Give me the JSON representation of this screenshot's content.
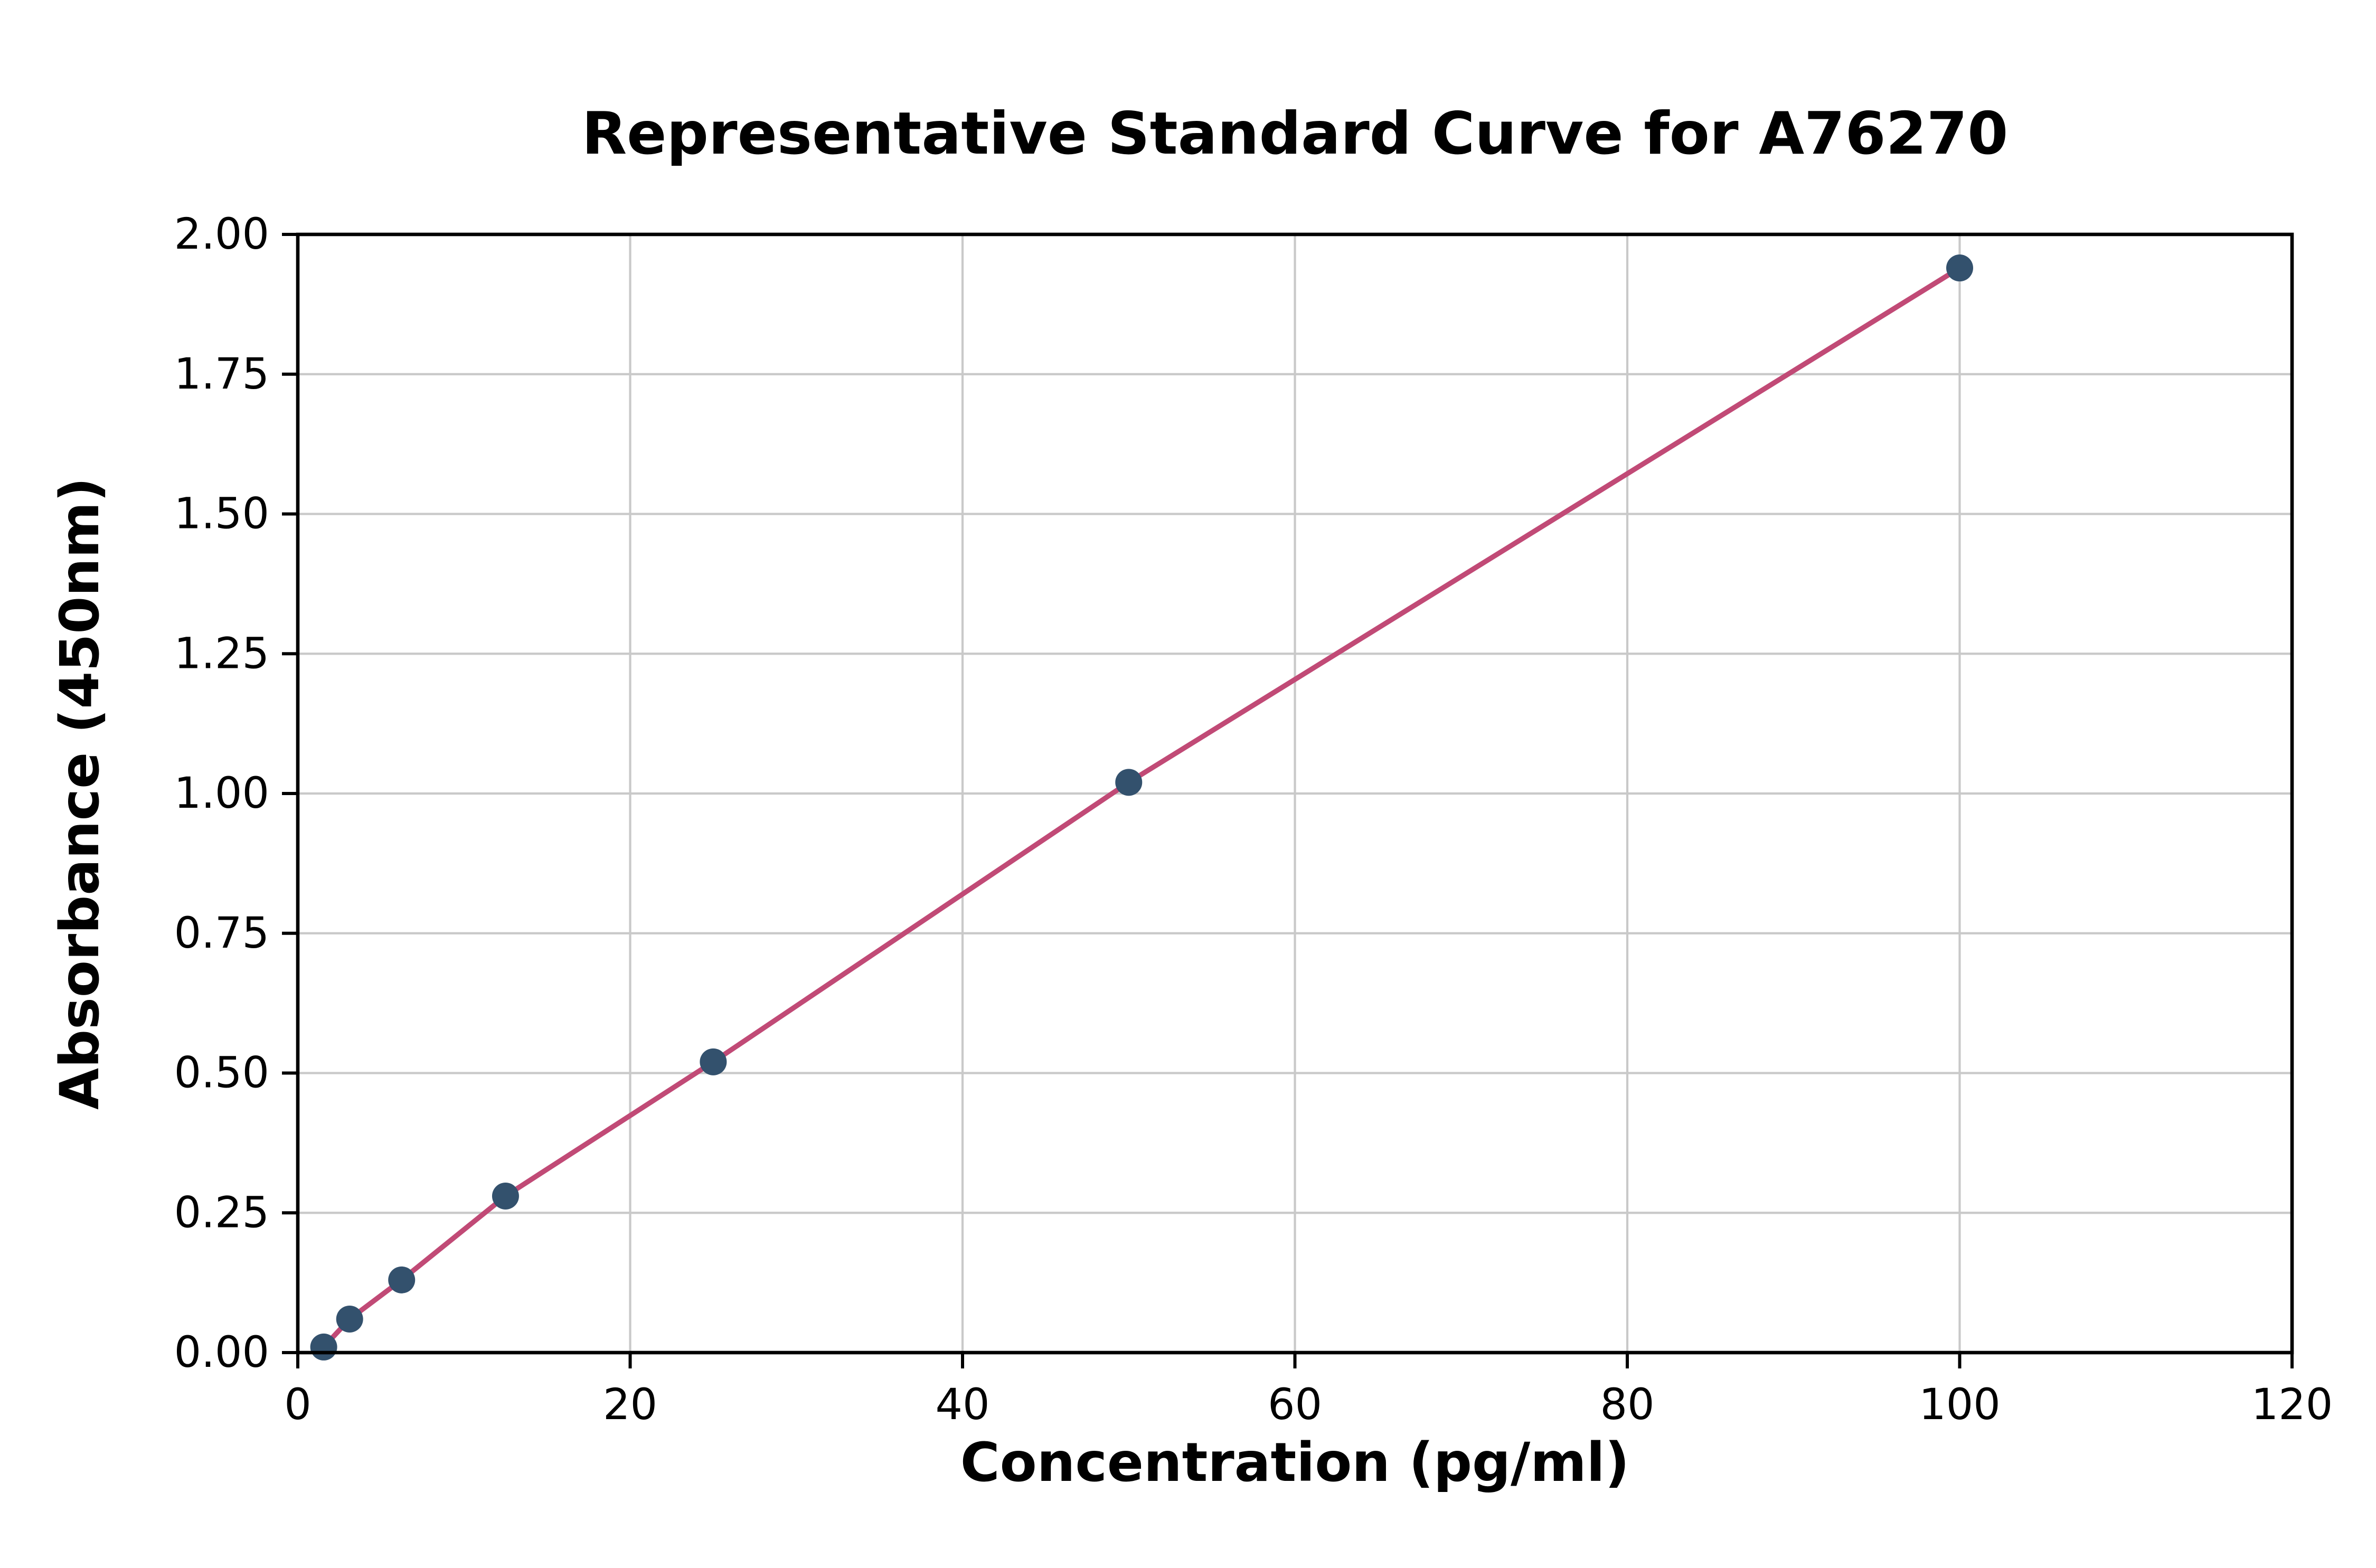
{
  "chart_data": {
    "type": "scatter",
    "title": "Representative Standard Curve for A76270",
    "xlabel": "Concentration (pg/ml)",
    "ylabel": "Absorbance (450nm)",
    "xlim": [
      0,
      120
    ],
    "ylim": [
      0,
      2.0
    ],
    "x_ticks": [
      0,
      20,
      40,
      60,
      80,
      100,
      120
    ],
    "x_tick_labels": [
      "0",
      "20",
      "40",
      "60",
      "80",
      "100",
      "120"
    ],
    "y_ticks": [
      0,
      0.25,
      0.5,
      0.75,
      1.0,
      1.25,
      1.5,
      1.75,
      2.0
    ],
    "y_tick_labels": [
      "0.00",
      "0.25",
      "0.50",
      "0.75",
      "1.00",
      "1.25",
      "1.50",
      "1.75",
      "2.00"
    ],
    "grid": true,
    "legend_position": "none",
    "series": [
      {
        "name": "fit-line",
        "type": "line",
        "color": "#c14a76",
        "x": [
          1.56,
          3.12,
          6.25,
          12.5,
          25,
          50,
          100
        ],
        "y": [
          0.01,
          0.06,
          0.13,
          0.28,
          0.52,
          1.02,
          1.94
        ]
      },
      {
        "name": "standard-points",
        "type": "scatter",
        "color": "#33516d",
        "x": [
          1.56,
          3.12,
          6.25,
          12.5,
          25,
          50,
          100
        ],
        "y": [
          0.01,
          0.06,
          0.13,
          0.28,
          0.52,
          1.02,
          1.94
        ]
      }
    ],
    "colors": {
      "grid": "#c9c9c9",
      "axis": "#000000",
      "background": "#ffffff",
      "line": "#c14a76",
      "marker": "#33516d"
    }
  }
}
